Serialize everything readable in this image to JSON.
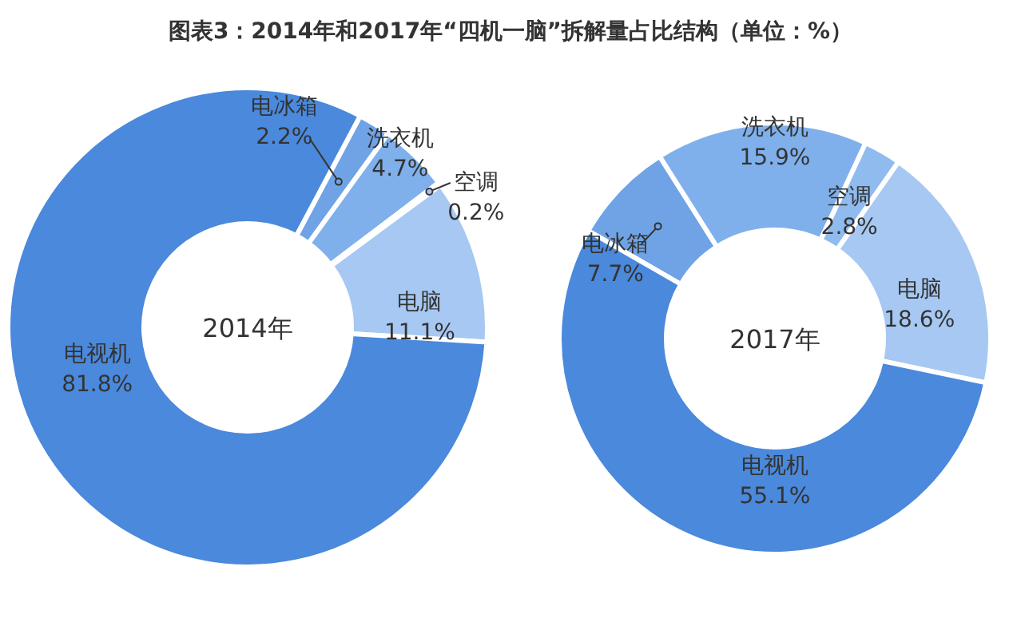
{
  "chart_data": [
    {
      "type": "donut",
      "title": "图表3：2014年和2017年“四机一脑”拆解量占比结构（单位：%）",
      "annotations": [
        "2014年"
      ],
      "categories": [
        "电冰箱",
        "洗衣机",
        "空调",
        "电脑",
        "电视机"
      ],
      "values": [
        2.2,
        4.7,
        0.2,
        11.1,
        81.8
      ],
      "value_labels": [
        "2.2%",
        "4.7%",
        "0.2%",
        "11.1%",
        "81.8%"
      ],
      "colors": [
        "#6fa3e6",
        "#7fb0ec",
        "#a6c8f2",
        "#a6c8f2",
        "#4a89dc"
      ]
    },
    {
      "type": "donut",
      "annotations": [
        "2017年"
      ],
      "categories": [
        "电冰箱",
        "洗衣机",
        "空调",
        "电脑",
        "电视机"
      ],
      "values": [
        7.7,
        15.9,
        2.8,
        18.6,
        55.1
      ],
      "value_labels": [
        "7.7%",
        "15.9%",
        "2.8%",
        "18.6%",
        "55.1%"
      ],
      "colors": [
        "#6fa3e6",
        "#7fb0ec",
        "#8fbbee",
        "#a6c8f2",
        "#4a89dc"
      ]
    }
  ]
}
